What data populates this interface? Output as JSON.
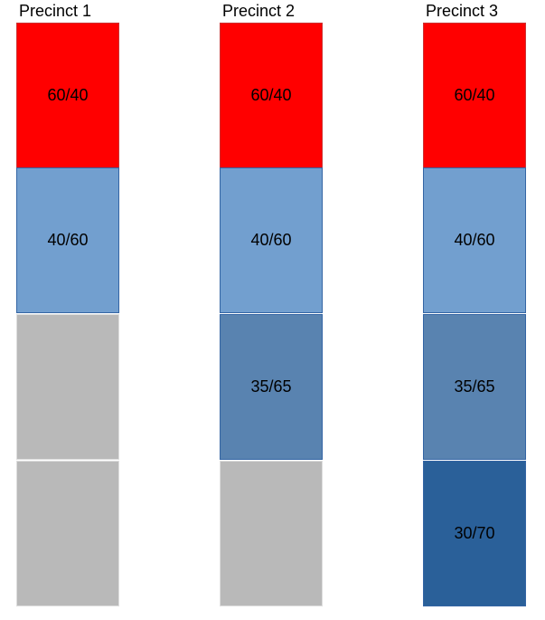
{
  "colors": {
    "red": "#ff0000",
    "light_blue": "#729fcf",
    "mid_blue": "#5983b0",
    "dark_blue": "#2a6099",
    "gray": "#b9b9b9"
  },
  "precincts": [
    {
      "title": "Precinct 1",
      "blocks": [
        {
          "label": "60/40",
          "color": "#ff0000",
          "border": "#cc3333"
        },
        {
          "label": "40/60",
          "color": "#729fcf",
          "border": "#3465a4"
        },
        {
          "label": "",
          "color": "#b9b9b9",
          "border": "#dedede"
        },
        {
          "label": "",
          "color": "#b9b9b9",
          "border": "#dedede"
        }
      ]
    },
    {
      "title": "Precinct 2",
      "blocks": [
        {
          "label": "60/40",
          "color": "#ff0000",
          "border": "#cc3333"
        },
        {
          "label": "40/60",
          "color": "#729fcf",
          "border": "#3465a4"
        },
        {
          "label": "35/65",
          "color": "#5983b0",
          "border": "#3465a4"
        },
        {
          "label": "",
          "color": "#b9b9b9",
          "border": "#dedede"
        }
      ]
    },
    {
      "title": "Precinct 3",
      "blocks": [
        {
          "label": "60/40",
          "color": "#ff0000",
          "border": "#cc3333"
        },
        {
          "label": "40/60",
          "color": "#729fcf",
          "border": "#3465a4"
        },
        {
          "label": "35/65",
          "color": "#5983b0",
          "border": "#3465a4"
        },
        {
          "label": "30/70",
          "color": "#2a6099",
          "border": "#3465a4"
        }
      ]
    }
  ]
}
